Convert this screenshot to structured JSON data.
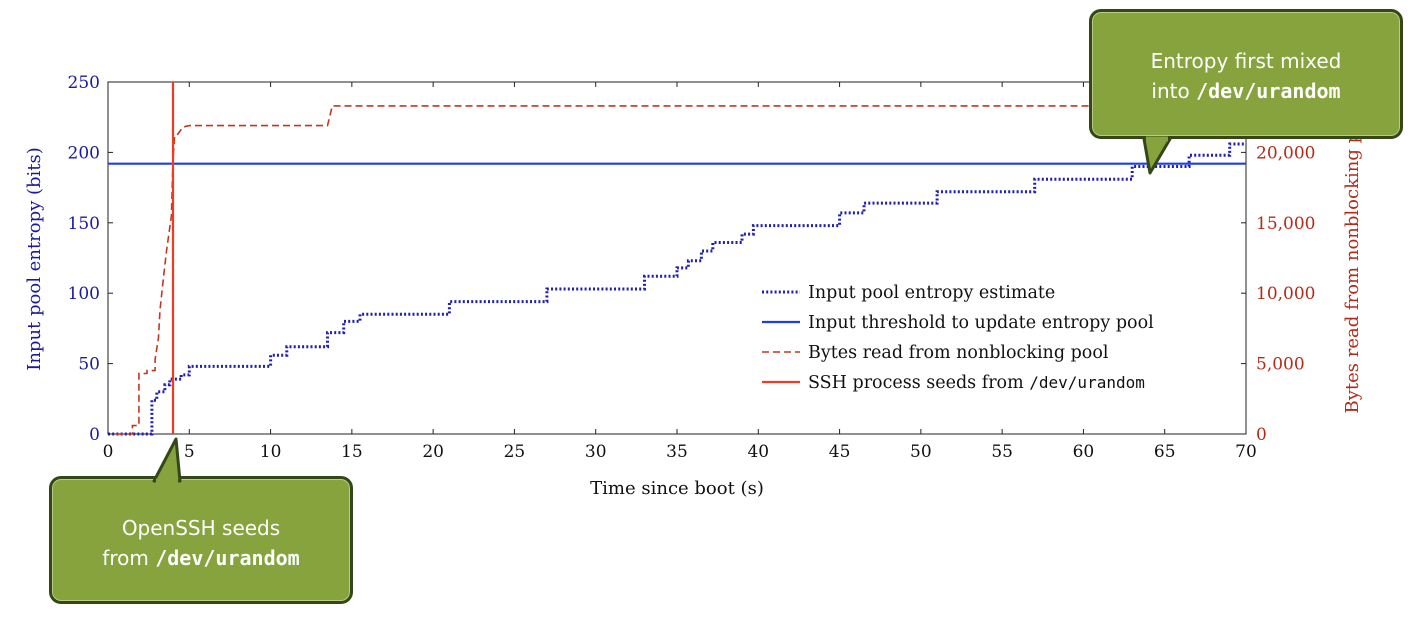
{
  "chart_data": {
    "type": "line",
    "xlabel": "Time since boot (s)",
    "ylabel": "Input pool entropy (bits)",
    "y2label": "Bytes read from nonblocking pool",
    "xlim": [
      0,
      70
    ],
    "ylim": [
      0,
      250
    ],
    "y2lim": [
      0,
      25000
    ],
    "xticks": [
      "0",
      "5",
      "10",
      "15",
      "20",
      "25",
      "30",
      "35",
      "40",
      "45",
      "50",
      "55",
      "60",
      "65",
      "70"
    ],
    "yticks": [
      "0",
      "50",
      "100",
      "150",
      "200",
      "250"
    ],
    "y2ticks": [
      "0",
      "5,000",
      "10,000",
      "15,000",
      "20,000"
    ],
    "legend_position": "center-right",
    "series": [
      {
        "name": "Input pool entropy estimate",
        "axis": "left",
        "style": "dotted",
        "color": "#1f1fb4",
        "x": [
          0,
          2.7,
          2.7,
          3.0,
          3.0,
          3.5,
          3.5,
          3.8,
          3.8,
          4.5,
          4.5,
          5.0,
          5.0,
          10.0,
          10.0,
          11.0,
          11.0,
          13.5,
          13.5,
          14.5,
          14.5,
          15.5,
          15.5,
          21.0,
          21.0,
          27.0,
          27.0,
          33.0,
          33.0,
          35.0,
          35.0,
          35.7,
          35.7,
          36.5,
          36.5,
          37.2,
          37.2,
          39.0,
          39.0,
          39.7,
          39.7,
          45.0,
          45.0,
          46.5,
          46.5,
          51.0,
          51.0,
          57.0,
          57.0,
          63.0,
          63.0,
          66.5,
          66.5,
          69.0,
          69.0,
          70.0
        ],
        "y": [
          0,
          0,
          24,
          24,
          30,
          30,
          35,
          35,
          39,
          39,
          42,
          42,
          48,
          48,
          56,
          56,
          62,
          62,
          72,
          72,
          80,
          80,
          85,
          85,
          94,
          94,
          103,
          103,
          112,
          112,
          118,
          118,
          123,
          123,
          130,
          130,
          136,
          136,
          142,
          142,
          148,
          148,
          157,
          157,
          164,
          164,
          172,
          172,
          181,
          181,
          190,
          190,
          198,
          198,
          206,
          206
        ]
      },
      {
        "name": "Input threshold to update entropy pool",
        "axis": "left",
        "style": "solid",
        "color": "#1f3fe0",
        "x": [
          0,
          70
        ],
        "y": [
          192,
          192
        ]
      },
      {
        "name": "Bytes read from nonblocking pool",
        "axis": "right",
        "style": "dashed",
        "color": "#c0391e",
        "x": [
          0.5,
          1.5,
          1.5,
          1.9,
          1.9,
          2.4,
          2.4,
          2.9,
          2.9,
          3.1,
          3.2,
          3.4,
          3.6,
          3.9,
          4.0,
          4.1,
          4.3,
          4.6,
          5.0,
          13.5,
          13.8,
          70.0
        ],
        "y": [
          0,
          0,
          600,
          600,
          4300,
          4300,
          4500,
          4500,
          5300,
          6800,
          8800,
          11000,
          13000,
          15500,
          19500,
          21200,
          21300,
          21800,
          21900,
          21900,
          23300,
          23300
        ]
      },
      {
        "name": "SSH process seeds from /dev/urandom",
        "axis": "left",
        "style": "solid",
        "color": "#f03a22",
        "x": [
          4.0,
          4.0
        ],
        "y": [
          0,
          250
        ]
      }
    ]
  },
  "callouts": {
    "top": {
      "line1": "Entropy first mixed",
      "prefix": "into ",
      "code": "/dev/urandom"
    },
    "bottom": {
      "line1": "OpenSSH seeds",
      "prefix": "from ",
      "code": "/dev/urandom"
    }
  }
}
